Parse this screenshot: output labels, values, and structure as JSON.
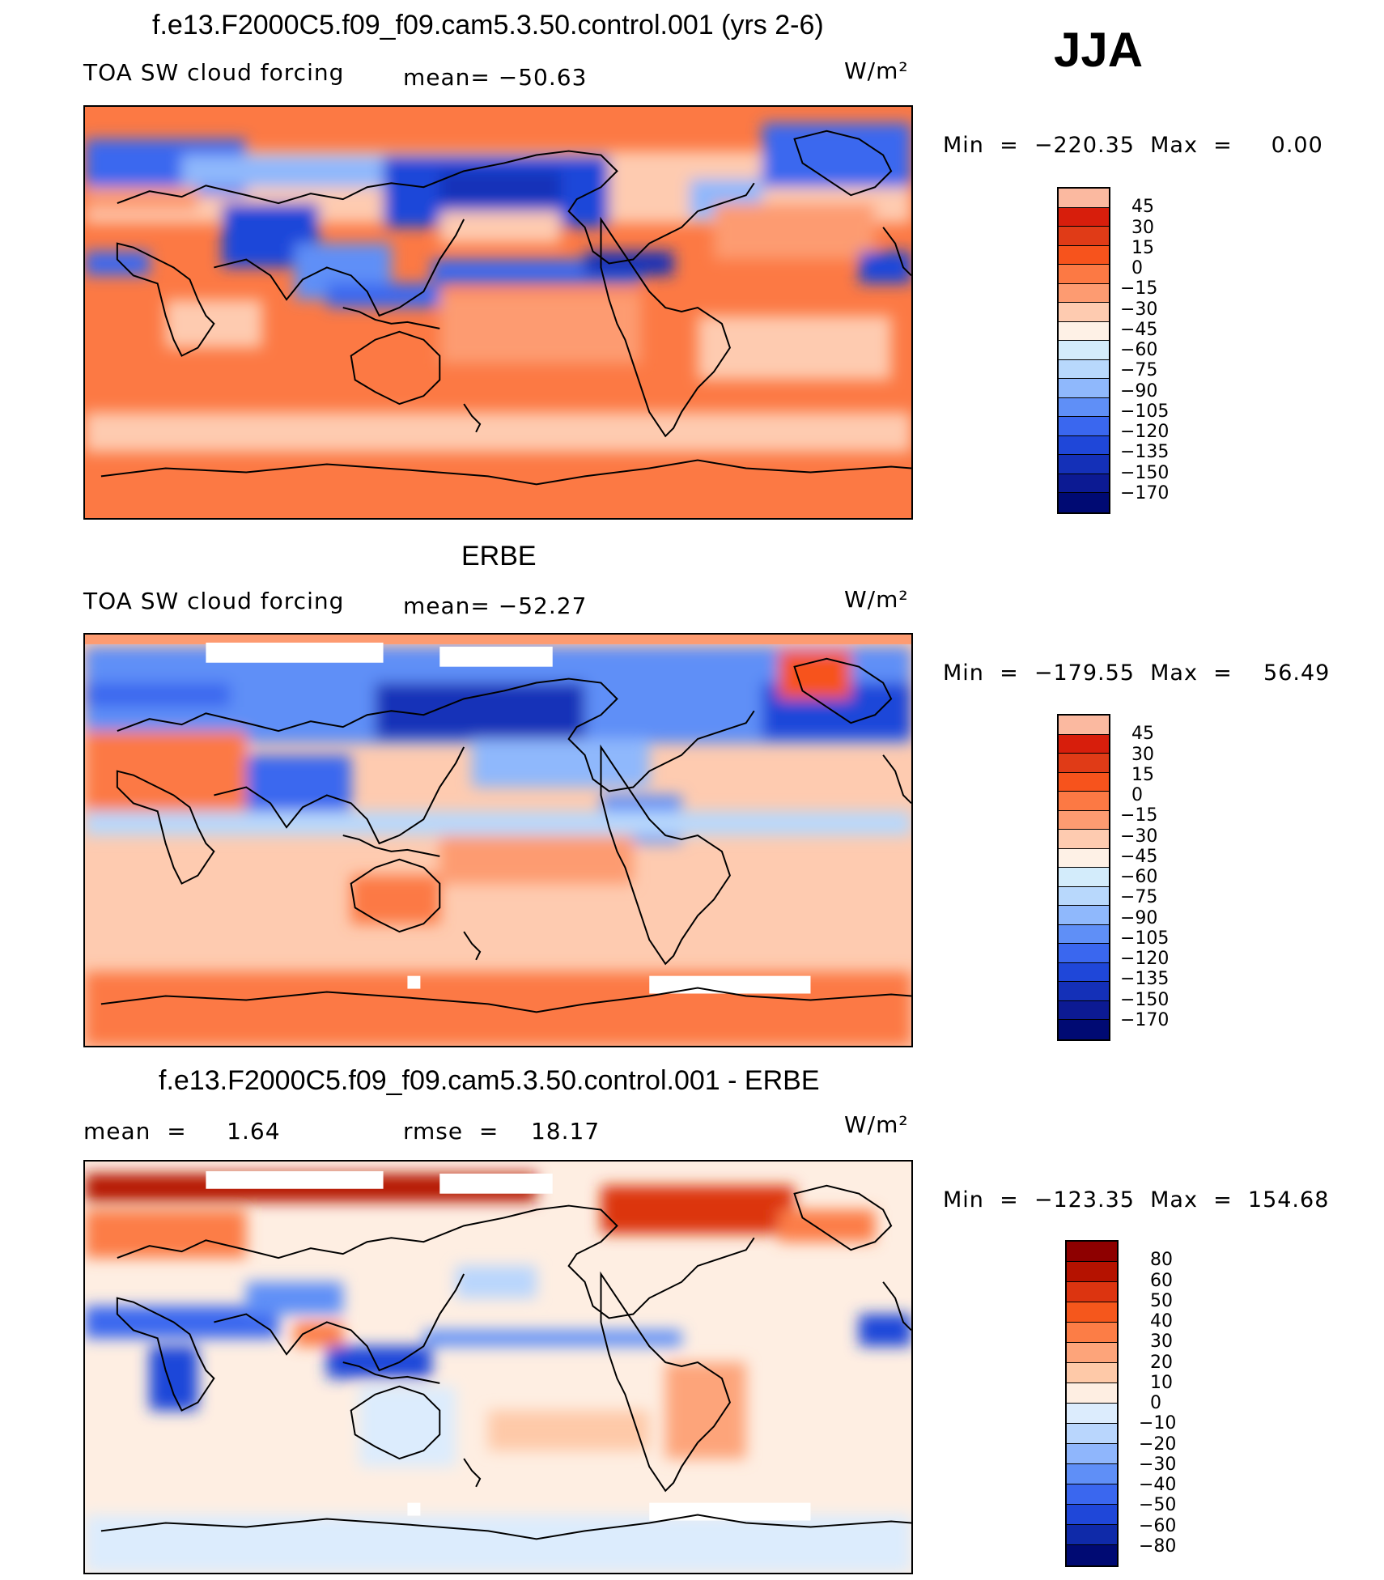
{
  "season": "JJA",
  "colors": {
    "abs": [
      "#fbb9a0",
      "#d71e0c",
      "#e03b17",
      "#f7531c",
      "#fc7944",
      "#fd9b71",
      "#fecbb0",
      "#fef1e6",
      "#d3ecfb",
      "#b8d8fc",
      "#8fb8fc",
      "#5f8ff7",
      "#3a67ef",
      "#1f47d9",
      "#1430b8",
      "#0c1a93",
      "#000a73"
    ],
    "diff": [
      "#8e0000",
      "#b51200",
      "#dc3410",
      "#f5571c",
      "#fc7d46",
      "#fda47a",
      "#fec9a8",
      "#feeee2",
      "#dcecfd",
      "#b9d6fd",
      "#8fb6fc",
      "#5f8ff7",
      "#3a67ef",
      "#1f47d9",
      "#0f2aa9",
      "#000a73"
    ]
  },
  "panels": [
    {
      "title": "f.e13.F2000C5.f09_f09.cam5.3.50.control.001 (yrs 2-6)",
      "left_label": "TOA SW cloud forcing",
      "center_label": "mean= −50.63",
      "units": "W/m²",
      "minmax": "Min  =  −220.35  Max  =     0.00",
      "colorbar_labels": [
        "45",
        "30",
        "15",
        "0",
        "−15",
        "−30",
        "−45",
        "−60",
        "−75",
        "−90",
        "−105",
        "−120",
        "−135",
        "−150",
        "−170"
      ]
    },
    {
      "title": "ERBE",
      "left_label": "TOA SW cloud forcing",
      "center_label": "mean= −52.27",
      "units": "W/m²",
      "minmax": "Min  =  −179.55  Max  =    56.49",
      "colorbar_labels": [
        "45",
        "30",
        "15",
        "0",
        "−15",
        "−30",
        "−45",
        "−60",
        "−75",
        "−90",
        "−105",
        "−120",
        "−135",
        "−150",
        "−170"
      ]
    },
    {
      "title": "f.e13.F2000C5.f09_f09.cam5.3.50.control.001 - ERBE",
      "left_label": "mean  =     1.64",
      "center_label": "rmse  =    18.17",
      "units": "W/m²",
      "minmax": "Min  =  −123.35  Max  =  154.68",
      "colorbar_labels": [
        "80",
        "60",
        "50",
        "40",
        "30",
        "20",
        "10",
        "0",
        "−10",
        "−20",
        "−30",
        "−40",
        "−50",
        "−60",
        "−80"
      ]
    }
  ]
}
